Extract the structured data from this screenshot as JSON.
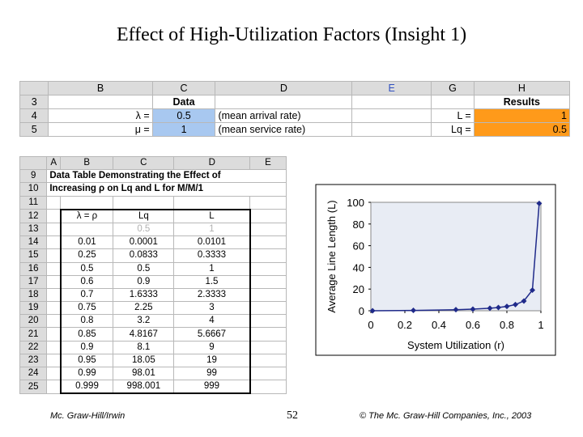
{
  "title": "Effect of High-Utilization Factors (Insight 1)",
  "top_sheet": {
    "columns": [
      "",
      "B",
      "C",
      "D",
      "E",
      "G",
      "H"
    ],
    "rows": [
      {
        "num": "3",
        "c": "Data",
        "g": "",
        "h": "Results"
      },
      {
        "num": "4",
        "b": "λ =",
        "c": "0.5",
        "d": "(mean arrival rate)",
        "g": "L =",
        "h": "1"
      },
      {
        "num": "5",
        "b": "μ =",
        "c": "1",
        "d": "(mean service rate)",
        "g": "Lq =",
        "h": "0.5"
      }
    ]
  },
  "data_table": {
    "columns": [
      "",
      "A",
      "B",
      "C",
      "D",
      "E"
    ],
    "caption_row9": "Data Table Demonstrating the Effect of",
    "caption_row10": "Increasing ρ on Lq and L for M/M/1",
    "row11": "11",
    "header_row": {
      "num": "12",
      "rho": "λ = ρ",
      "lq": "Lq",
      "l": "L"
    },
    "row13": {
      "num": "13",
      "rho": "",
      "lq": "0.5",
      "l": "1"
    },
    "rows": [
      {
        "num": "14",
        "rho": "0.01",
        "lq": "0.0001",
        "l": "0.0101"
      },
      {
        "num": "15",
        "rho": "0.25",
        "lq": "0.0833",
        "l": "0.3333"
      },
      {
        "num": "16",
        "rho": "0.5",
        "lq": "0.5",
        "l": "1"
      },
      {
        "num": "17",
        "rho": "0.6",
        "lq": "0.9",
        "l": "1.5"
      },
      {
        "num": "18",
        "rho": "0.7",
        "lq": "1.6333",
        "l": "2.3333"
      },
      {
        "num": "19",
        "rho": "0.75",
        "lq": "2.25",
        "l": "3"
      },
      {
        "num": "20",
        "rho": "0.8",
        "lq": "3.2",
        "l": "4"
      },
      {
        "num": "21",
        "rho": "0.85",
        "lq": "4.8167",
        "l": "5.6667"
      },
      {
        "num": "22",
        "rho": "0.9",
        "lq": "8.1",
        "l": "9"
      },
      {
        "num": "23",
        "rho": "0.95",
        "lq": "18.05",
        "l": "19"
      },
      {
        "num": "24",
        "rho": "0.99",
        "lq": "98.01",
        "l": "99"
      },
      {
        "num": "25",
        "rho": "0.999",
        "lq": "998.001",
        "l": "999"
      }
    ]
  },
  "chart_data": {
    "type": "line",
    "xlabel": "System Utilization (r)",
    "ylabel": "Average Line Length (L)",
    "xlim": [
      0,
      1
    ],
    "ylim": [
      0,
      100
    ],
    "x_ticks": [
      "0",
      "0.2",
      "0.4",
      "0.6",
      "0.8",
      "1"
    ],
    "y_ticks": [
      "0",
      "20",
      "40",
      "60",
      "80",
      "100"
    ],
    "x": [
      0.01,
      0.25,
      0.5,
      0.6,
      0.7,
      0.75,
      0.8,
      0.85,
      0.9,
      0.95,
      0.99
    ],
    "y": [
      0.0101,
      0.3333,
      1,
      1.5,
      2.3333,
      3,
      4,
      5.6667,
      9,
      19,
      99
    ],
    "line_color": "#1f2a8a",
    "plot_bg": "#e8ecf4"
  },
  "footer": {
    "left": "Mc. Graw-Hill/Irwin",
    "page": "52",
    "right": "© The Mc. Graw-Hill Companies, Inc., 2003"
  }
}
